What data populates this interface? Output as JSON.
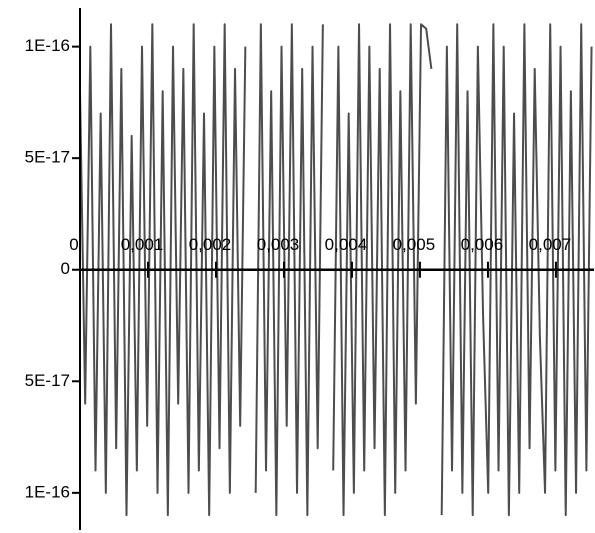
{
  "chart_data": {
    "type": "line",
    "x": [
      0,
      7.6e-05,
      0.000152,
      0.000228,
      0.000304,
      0.00038,
      0.000456,
      0.000532,
      0.000608,
      0.000684,
      0.00076,
      0.000836,
      0.000912,
      0.000988,
      0.001064,
      0.00114,
      0.001216,
      0.001292,
      0.001368,
      0.001444,
      0.00152,
      0.001596,
      0.001672,
      0.001748,
      0.001824,
      0.0019,
      0.001976,
      0.002052,
      0.002128,
      0.002204,
      0.00228,
      0.002356,
      0.002432,
      0.002508,
      0.002584,
      0.00266,
      0.002736,
      0.002812,
      0.002888,
      0.002964,
      0.00304,
      0.003116,
      0.003192,
      0.003268,
      0.003344,
      0.00342,
      0.003496,
      0.003572,
      0.003648,
      0.003724,
      0.0038,
      0.003876,
      0.003952,
      0.004028,
      0.004104,
      0.00418,
      0.004256,
      0.004332,
      0.004408,
      0.004484,
      0.00456,
      0.004636,
      0.004712,
      0.004788,
      0.004864,
      0.00494,
      0.005016,
      0.005092,
      0.005168,
      0.005244,
      0.00532,
      0.005396,
      0.005472,
      0.005548,
      0.005624,
      0.0057,
      0.005776,
      0.005852,
      0.005928,
      0.006004,
      0.00608,
      0.006156,
      0.006232,
      0.006308,
      0.006384,
      0.00646,
      0.006536,
      0.006612,
      0.006688,
      0.006764,
      0.00684,
      0.006916,
      0.006992,
      0.007068,
      0.007144,
      0.00722,
      0.007296,
      0.007372,
      0.007448,
      0.007524
    ],
    "series": [
      {
        "color": "#4d4d4d",
        "values": [
          8e-17,
          -6e-17,
          1e-16,
          -9e-17,
          7e-17,
          -1e-16,
          1.1e-16,
          -8e-17,
          9e-17,
          -1.1e-16,
          6e-17,
          -9e-17,
          1e-16,
          -7e-17,
          1.1e-16,
          -1e-16,
          8e-17,
          -1.1e-16,
          1e-16,
          -6e-17,
          9e-17,
          -1e-16,
          1.1e-16,
          -9e-17,
          7e-17,
          -1.1e-16,
          1e-16,
          -8e-17,
          1.1e-16,
          -1e-16,
          9e-17,
          -7e-17,
          1e-16,
          null,
          -1e-16,
          1.1e-16,
          -9e-17,
          8e-17,
          -1.1e-16,
          1e-16,
          -7e-17,
          1.1e-16,
          -1e-16,
          9e-17,
          -1.1e-16,
          1e-16,
          -8e-17,
          1.1e-16,
          null,
          -9e-17,
          1e-16,
          -1.1e-16,
          7e-17,
          -1e-16,
          1.1e-16,
          -9e-17,
          1e-16,
          -8e-17,
          9e-17,
          -1.1e-16,
          1.1e-16,
          -1e-16,
          8e-17,
          -9e-17,
          1.1e-16,
          -6e-17,
          1.1e-16,
          1.08e-16,
          9e-17,
          null,
          -1.1e-16,
          1e-16,
          -9e-17,
          1.1e-16,
          -1e-16,
          8e-17,
          -1.1e-16,
          1e-16,
          -2e-17,
          -1e-16,
          1.1e-16,
          -9e-17,
          1e-16,
          -1.1e-16,
          7e-17,
          -1e-16,
          1.1e-16,
          -8e-17,
          9e-17,
          -3e-17,
          -1e-16,
          1.1e-16,
          -9e-17,
          1e-16,
          -1.1e-16,
          8e-17,
          -1e-16,
          1.1e-16,
          -9e-17,
          1e-16
        ]
      }
    ],
    "xlim": [
      0,
      0.00756
    ],
    "xticks": [
      0,
      {
        "value": 0.001,
        "label": "0,001"
      },
      {
        "value": 0.002,
        "label": "0,002"
      },
      {
        "value": 0.003,
        "label": "0,003"
      },
      {
        "value": 0.004,
        "label": "0,004"
      },
      {
        "value": 0.005,
        "label": "0,005"
      },
      {
        "value": 0.006,
        "label": "0,006"
      },
      {
        "value": 0.007,
        "label": "0,007"
      }
    ],
    "ylim": [
      -1.18e-16,
      1.2e-16
    ],
    "yticks": [
      {
        "value": -1e-16,
        "label": "1E-16"
      },
      {
        "value": -5e-17,
        "label": "5E-17"
      },
      0,
      {
        "value": 5e-17,
        "label": "5E-17"
      },
      {
        "value": 1e-16,
        "label": "1E-16"
      }
    ]
  }
}
